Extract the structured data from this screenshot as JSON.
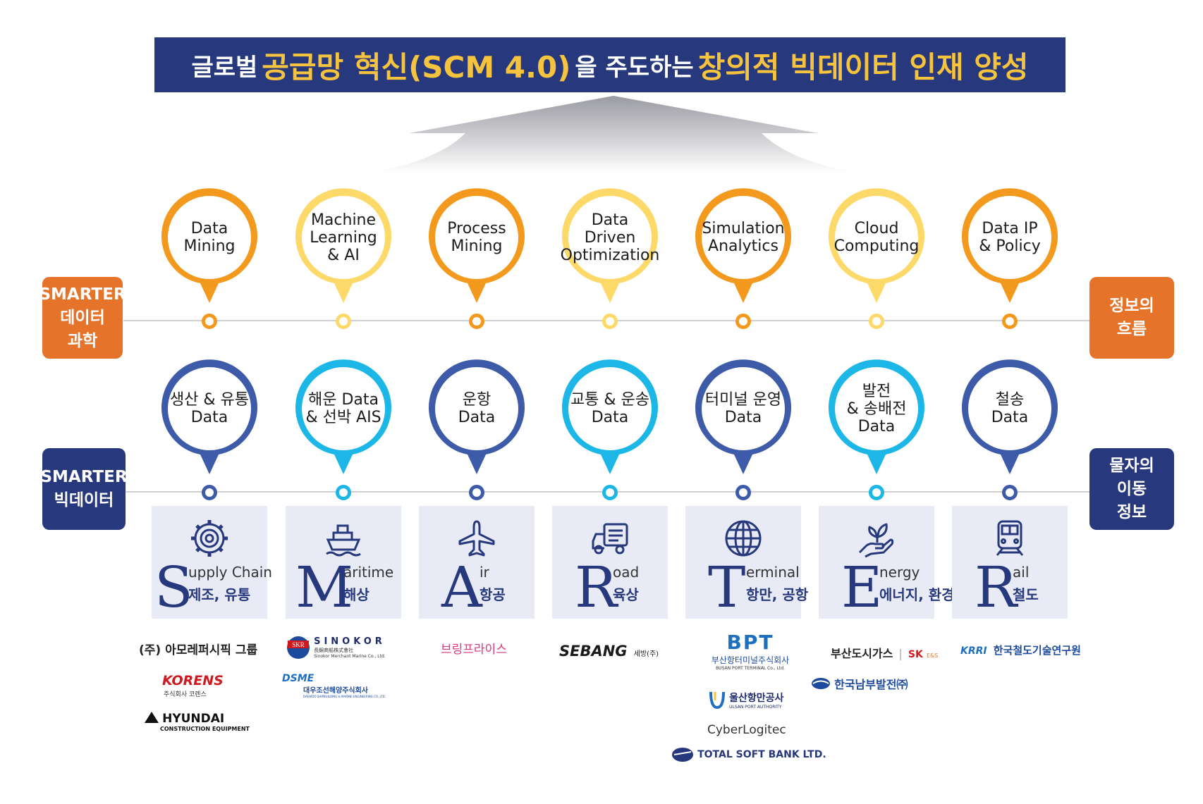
{
  "banner": {
    "p1": "글로벌",
    "p2": "공급망 혁신(SCM 4.0)",
    "p3": "을 주도하는",
    "p4": "창의적 빅데이터 인재 양성"
  },
  "left_labels": {
    "top": [
      "SMARTER",
      "데이터",
      "과학"
    ],
    "bottom": [
      "SMARTER",
      "빅데이터"
    ]
  },
  "right_labels": {
    "top": [
      "정보의",
      "흐름"
    ],
    "bottom": [
      "물자의",
      "이동",
      "정보"
    ]
  },
  "colors": {
    "orange": "#f39a1e",
    "yellow": "#fdd96a",
    "navy": "#3d5ba8",
    "cyan": "#1cb7e6",
    "banner": "#27397c",
    "side_orange": "#e5742a"
  },
  "science_pins": [
    {
      "label": "Data\nMining",
      "color": "orange"
    },
    {
      "label": "Machine\nLearning\n& AI",
      "color": "yellow"
    },
    {
      "label": "Process\nMining",
      "color": "orange"
    },
    {
      "label": "Data\nDriven\nOptimization",
      "color": "yellow"
    },
    {
      "label": "Simulation\nAnalytics",
      "color": "orange"
    },
    {
      "label": "Cloud\nComputing",
      "color": "yellow"
    },
    {
      "label": "Data IP\n& Policy",
      "color": "orange"
    }
  ],
  "data_pins": [
    {
      "label": "생산 & 유통\nData",
      "color": "navy"
    },
    {
      "label": "해운 Data\n& 선박 AIS",
      "color": "cyan"
    },
    {
      "label": "운항\nData",
      "color": "navy"
    },
    {
      "label": "교통 & 운송\nData",
      "color": "cyan"
    },
    {
      "label": "터미널 운영\nData",
      "color": "navy"
    },
    {
      "label": "발전\n& 송배전\nData",
      "color": "cyan"
    },
    {
      "label": "철송\nData",
      "color": "navy"
    }
  ],
  "cards": [
    {
      "letter": "S",
      "rest": "upply Chain",
      "ko": "제조, 유통",
      "icon": "gear-icon"
    },
    {
      "letter": "M",
      "rest": "aritime",
      "ko": "해상",
      "icon": "ship-icon"
    },
    {
      "letter": "A",
      "rest": "ir",
      "ko": "항공",
      "icon": "airplane-icon"
    },
    {
      "letter": "R",
      "rest": "oad",
      "ko": "육상",
      "icon": "truck-icon"
    },
    {
      "letter": "T",
      "rest": "erminal",
      "ko": "항만, 공항",
      "icon": "globe-icon"
    },
    {
      "letter": "E",
      "rest": "nergy",
      "ko": "에너지, 환경",
      "icon": "plant-hand-icon"
    },
    {
      "letter": "R",
      "rest": "ail",
      "ko": "철도",
      "icon": "train-icon"
    }
  ],
  "partners": {
    "col1": [
      "(주) 아모레퍼시픽 그룹",
      "KORENS",
      "주식회사 코렌스",
      "HYUNDAI",
      "CONSTRUCTION EQUIPMENT"
    ],
    "col2": [
      "SKR",
      "SINOKOR",
      "長錦商船株式會社",
      "Sinokor Merchant Marine Co., Ltd.",
      "DSME",
      "대우조선해양주식회사",
      "DAEWOO SHIPBUILDING & MARINE ENGINEERING CO.,LTD."
    ],
    "col3": [
      "브링프라이스"
    ],
    "col4": [
      "SEBANG",
      "세방(주)"
    ],
    "col5": [
      "BPT",
      "부산항터미널주식회사",
      "BUSAN PORT TERMINAL Co., Ltd.",
      "울산항만공사",
      "ULSAN PORT AUTHORITY",
      "CyberLogitec",
      "TOTAL SOFT BANK LTD."
    ],
    "col6": [
      "부산도시가스",
      "SK",
      "E&S",
      "한국남부발전㈜"
    ],
    "col7": [
      "KRRI",
      "한국철도기술연구원"
    ]
  }
}
